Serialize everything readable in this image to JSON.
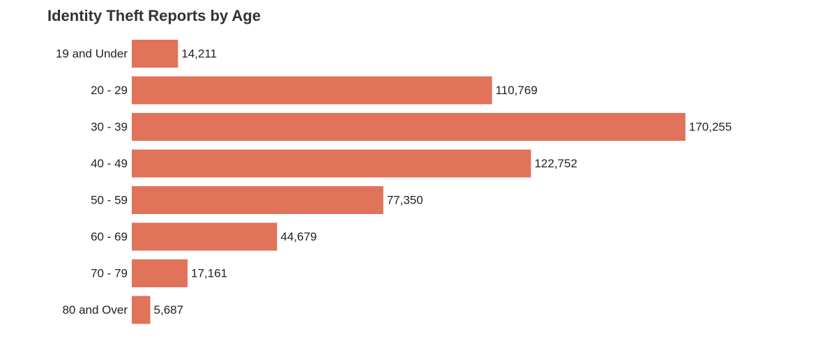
{
  "chart_data": {
    "type": "bar",
    "orientation": "horizontal",
    "title": "Identity Theft Reports by Age",
    "categories": [
      "19 and Under",
      "20 - 29",
      "30 - 39",
      "40 - 49",
      "50 - 59",
      "60 - 69",
      "70 - 79",
      "80 and Over"
    ],
    "values": [
      14211,
      110769,
      170255,
      122752,
      77350,
      44679,
      17161,
      5687
    ],
    "value_labels": [
      "14,211",
      "110,769",
      "170,255",
      "122,752",
      "77,350",
      "44,679",
      "17,161",
      "5,687"
    ],
    "xlim": [
      0,
      170255
    ],
    "grid": false,
    "legend": "none",
    "bar_color": "#e0735a"
  }
}
